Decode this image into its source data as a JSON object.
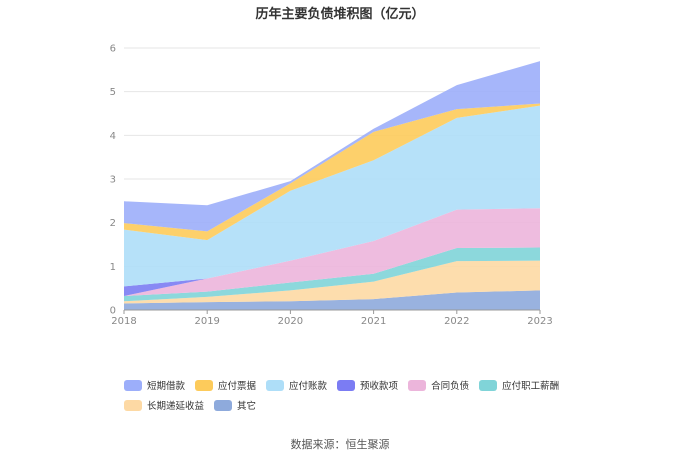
{
  "chart_data": {
    "type": "area",
    "stacked": true,
    "title": "历年主要负债堆积图（亿元）",
    "xlabel": "",
    "ylabel": "",
    "ylim": [
      0,
      6
    ],
    "yticks": [
      0,
      1,
      2,
      3,
      4,
      5,
      6
    ],
    "x": [
      "2018",
      "2019",
      "2020",
      "2021",
      "2022",
      "2023"
    ],
    "series": [
      {
        "name": "其它",
        "color": "#8eaadc",
        "values": [
          0.15,
          0.18,
          0.2,
          0.25,
          0.4,
          0.45
        ]
      },
      {
        "name": "长期递延收益",
        "color": "#fdd9a4",
        "values": [
          0.05,
          0.12,
          0.25,
          0.4,
          0.72,
          0.68
        ]
      },
      {
        "name": "应付职工薪酬",
        "color": "#80d4d8",
        "values": [
          0.12,
          0.12,
          0.18,
          0.18,
          0.3,
          0.3
        ]
      },
      {
        "name": "合同负债",
        "color": "#ecb5db",
        "values": [
          0.0,
          0.3,
          0.5,
          0.75,
          0.88,
          0.9
        ]
      },
      {
        "name": "预收款项",
        "color": "#7b7cf3",
        "values": [
          0.22,
          0.0,
          0.0,
          0.0,
          0.0,
          0.0
        ]
      },
      {
        "name": "应付账款",
        "color": "#aedef8",
        "values": [
          1.3,
          0.88,
          1.6,
          1.85,
          2.1,
          2.35
        ]
      },
      {
        "name": "应付票据",
        "color": "#fdcb5b",
        "values": [
          0.15,
          0.2,
          0.17,
          0.65,
          0.2,
          0.05
        ]
      },
      {
        "name": "短期借款",
        "color": "#9caefa",
        "values": [
          0.5,
          0.6,
          0.05,
          0.07,
          0.55,
          0.97
        ]
      }
    ],
    "legend": "bottom"
  },
  "source": "数据来源：恒生聚源"
}
